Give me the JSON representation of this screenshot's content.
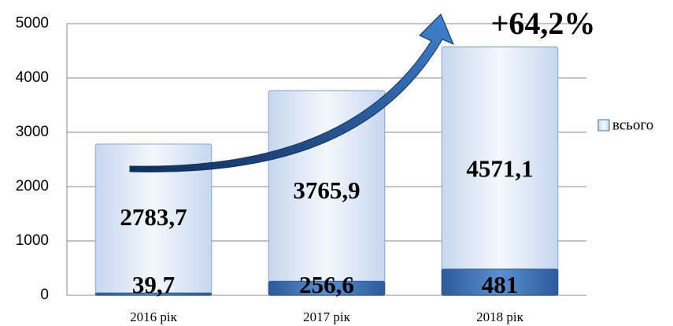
{
  "chart_data": {
    "type": "bar",
    "categories": [
      "2016 рік",
      "2017 рік",
      "2018 рік"
    ],
    "series": [
      {
        "name": "всього",
        "color": "#dbe6f6",
        "values": [
          2783.7,
          3765.9,
          4571.1
        ],
        "value_labels": [
          "2783,7",
          "3765,9",
          "4571,1"
        ]
      },
      {
        "color": "#3d72b8",
        "values": [
          39.7,
          256.6,
          481
        ],
        "value_labels": [
          "39,7",
          "256,6",
          "481"
        ]
      }
    ],
    "annotation": "+64,2%",
    "ylim": [
      0,
      5000
    ],
    "yticks": [
      0,
      1000,
      2000,
      3000,
      4000,
      5000
    ],
    "grid": true,
    "legend": "right"
  }
}
